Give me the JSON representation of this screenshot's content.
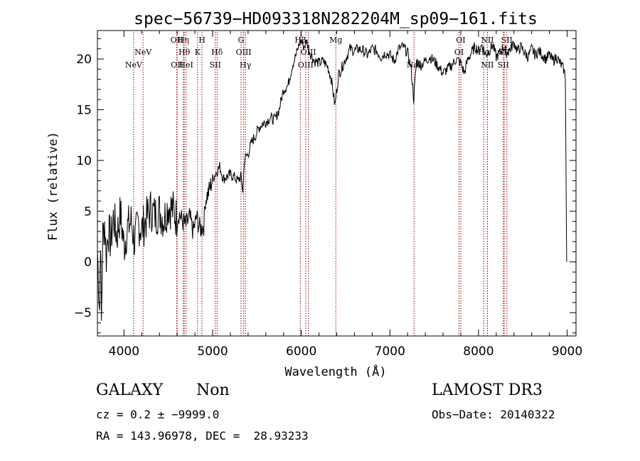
{
  "chart_data": {
    "type": "line",
    "title": "spec−56739−HD093318N282204M_sp09−161.fits",
    "xlabel": "Wavelength (Å)",
    "ylabel": "Flux (relative)",
    "xlim": [
      3700,
      9100
    ],
    "ylim": [
      -7.3,
      22.8
    ],
    "xticks": [
      4000,
      5000,
      6000,
      7000,
      8000,
      9000
    ],
    "yticks": [
      -5,
      0,
      5,
      10,
      15,
      20
    ],
    "spectrum": [
      [
        3700,
        1.0
      ],
      [
        3725,
        -4.5
      ],
      [
        3735,
        3.0
      ],
      [
        3745,
        -6.2
      ],
      [
        3760,
        2.6
      ],
      [
        3780,
        4.0
      ],
      [
        3800,
        0.5
      ],
      [
        3820,
        3.2
      ],
      [
        3850,
        2.0
      ],
      [
        3880,
        4.4
      ],
      [
        3920,
        2.6
      ],
      [
        3960,
        4.8
      ],
      [
        4000,
        1.5
      ],
      [
        4040,
        3.4
      ],
      [
        4080,
        4.0
      ],
      [
        4120,
        2.0
      ],
      [
        4160,
        3.8
      ],
      [
        4200,
        3.2
      ],
      [
        4250,
        4.2
      ],
      [
        4300,
        5.2
      ],
      [
        4350,
        4.6
      ],
      [
        4400,
        5.0
      ],
      [
        4450,
        4.2
      ],
      [
        4500,
        5.6
      ],
      [
        4560,
        5.0
      ],
      [
        4600,
        4.2
      ],
      [
        4620,
        4.8
      ],
      [
        4660,
        4.0
      ],
      [
        4700,
        3.6
      ],
      [
        4740,
        4.4
      ],
      [
        4780,
        3.0
      ],
      [
        4820,
        4.4
      ],
      [
        4860,
        3.2
      ],
      [
        4900,
        3.6
      ],
      [
        4920,
        6.2
      ],
      [
        4960,
        7.0
      ],
      [
        5000,
        8.2
      ],
      [
        5040,
        8.8
      ],
      [
        5080,
        9.4
      ],
      [
        5120,
        8.2
      ],
      [
        5160,
        8.4
      ],
      [
        5200,
        8.6
      ],
      [
        5240,
        8.4
      ],
      [
        5280,
        8.0
      ],
      [
        5320,
        8.4
      ],
      [
        5340,
        7.0
      ],
      [
        5360,
        10.2
      ],
      [
        5400,
        10.6
      ],
      [
        5440,
        11.8
      ],
      [
        5480,
        12.4
      ],
      [
        5520,
        13.2
      ],
      [
        5560,
        13.6
      ],
      [
        5600,
        13.8
      ],
      [
        5650,
        14.2
      ],
      [
        5700,
        14.0
      ],
      [
        5750,
        15.0
      ],
      [
        5800,
        17.0
      ],
      [
        5850,
        17.4
      ],
      [
        5900,
        19.4
      ],
      [
        5950,
        20.6
      ],
      [
        5980,
        21.6
      ],
      [
        6000,
        21.8
      ],
      [
        6030,
        21.2
      ],
      [
        6060,
        21.8
      ],
      [
        6100,
        20.6
      ],
      [
        6150,
        19.8
      ],
      [
        6200,
        19.6
      ],
      [
        6250,
        19.8
      ],
      [
        6300,
        19.2
      ],
      [
        6340,
        18.0
      ],
      [
        6380,
        15.4
      ],
      [
        6420,
        18.4
      ],
      [
        6460,
        19.2
      ],
      [
        6500,
        20.0
      ],
      [
        6550,
        21.0
      ],
      [
        6600,
        20.8
      ],
      [
        6650,
        21.0
      ],
      [
        6700,
        20.8
      ],
      [
        6750,
        20.4
      ],
      [
        6800,
        21.0
      ],
      [
        6850,
        20.8
      ],
      [
        6900,
        20.2
      ],
      [
        6950,
        20.6
      ],
      [
        7000,
        20.4
      ],
      [
        7050,
        19.8
      ],
      [
        7100,
        21.0
      ],
      [
        7150,
        21.2
      ],
      [
        7200,
        20.6
      ],
      [
        7240,
        19.0
      ],
      [
        7270,
        16.0
      ],
      [
        7300,
        19.8
      ],
      [
        7350,
        19.4
      ],
      [
        7400,
        19.8
      ],
      [
        7450,
        20.2
      ],
      [
        7500,
        19.8
      ],
      [
        7550,
        19.2
      ],
      [
        7600,
        18.6
      ],
      [
        7650,
        19.0
      ],
      [
        7700,
        19.4
      ],
      [
        7750,
        20.0
      ],
      [
        7800,
        19.6
      ],
      [
        7840,
        18.6
      ],
      [
        7880,
        20.0
      ],
      [
        7920,
        20.6
      ],
      [
        7960,
        21.2
      ],
      [
        8000,
        20.8
      ],
      [
        8040,
        21.4
      ],
      [
        8080,
        20.4
      ],
      [
        8120,
        20.8
      ],
      [
        8160,
        21.4
      ],
      [
        8200,
        20.2
      ],
      [
        8240,
        20.6
      ],
      [
        8280,
        21.2
      ],
      [
        8320,
        20.6
      ],
      [
        8360,
        21.0
      ],
      [
        8400,
        21.6
      ],
      [
        8440,
        20.8
      ],
      [
        8480,
        21.2
      ],
      [
        8520,
        20.6
      ],
      [
        8560,
        20.2
      ],
      [
        8600,
        21.0
      ],
      [
        8640,
        20.4
      ],
      [
        8680,
        20.8
      ],
      [
        8720,
        20.4
      ],
      [
        8760,
        20.0
      ],
      [
        8800,
        20.4
      ],
      [
        8840,
        19.8
      ],
      [
        8880,
        20.2
      ],
      [
        8920,
        19.6
      ],
      [
        8960,
        19.0
      ],
      [
        8980,
        18.2
      ],
      [
        8990,
        5.2
      ],
      [
        8995,
        0.0
      ]
    ],
    "lines": [
      {
        "wave": 4109,
        "label": "NeV",
        "row": 2
      },
      {
        "wave": 4215,
        "label": "NeV",
        "row": 1
      },
      {
        "wave": 4595,
        "label": "OII",
        "row": 0
      },
      {
        "wave": 4600,
        "label": "OII",
        "row": 2
      },
      {
        "wave": 4670,
        "label": "Hη",
        "row": 0
      },
      {
        "wave": 4680,
        "label": "Hθ",
        "row": 1
      },
      {
        "wave": 4700,
        "label": "HeI",
        "row": 2
      },
      {
        "wave": 4830,
        "label": "K",
        "row": 1
      },
      {
        "wave": 4880,
        "label": "H",
        "row": 0
      },
      {
        "wave": 5050,
        "label": "Hδ",
        "row": 1
      },
      {
        "wave": 5030,
        "label": "SII",
        "row": 2
      },
      {
        "wave": 5320,
        "label": "G",
        "row": 0
      },
      {
        "wave": 5350,
        "label": "OIII",
        "row": 1
      },
      {
        "wave": 5370,
        "label": "Hγ",
        "row": 2
      },
      {
        "wave": 5990,
        "label": "Hβ",
        "row": 0
      },
      {
        "wave": 6080,
        "label": "OIII",
        "row": 1
      },
      {
        "wave": 6050,
        "label": "OIII",
        "row": 2
      },
      {
        "wave": 6390,
        "label": "Mg",
        "row": 0
      },
      {
        "wave": 7272,
        "label": "NaI",
        "row": 2
      },
      {
        "wave": 7800,
        "label": "OI",
        "row": 0
      },
      {
        "wave": 7780,
        "label": "OI",
        "row": 1
      },
      {
        "wave": 8100,
        "label": "NII",
        "row": 0
      },
      {
        "wave": 8060,
        "label": "Hα",
        "row": 1
      },
      {
        "wave": 8100,
        "label": "NII",
        "row": 2
      },
      {
        "wave": 8320,
        "label": "SII",
        "row": 0
      },
      {
        "wave": 8290,
        "label": "SII",
        "row": 1
      },
      {
        "wave": 8280,
        "label": "SII",
        "row": 2
      }
    ]
  },
  "info": {
    "object_class": "GALAXY",
    "subclass": "Non",
    "survey": "LAMOST DR3",
    "cz": "cz = 0.2 ± −9999.0",
    "obs_date": "Obs−Date: 20140322",
    "coords": "RA = 143.96978, DEC =  28.93233"
  },
  "colors": {
    "line_marker": "#990000",
    "spectrum": "#000000",
    "axes": "#000000"
  }
}
